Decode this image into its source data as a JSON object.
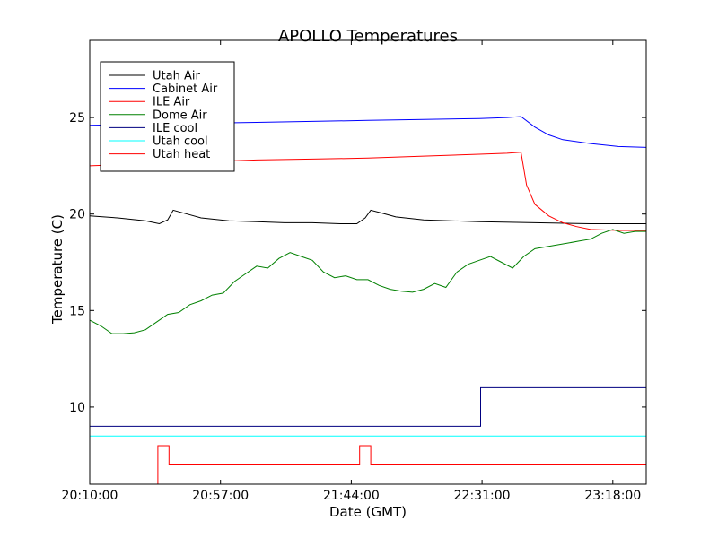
{
  "chart_data": {
    "type": "line",
    "title": "APOLLO Temperatures",
    "xlabel": "Date (GMT)",
    "ylabel": "Temperature (C)",
    "x_unit": "minutes since 20:10:00",
    "xlim": [
      0,
      200
    ],
    "ylim": [
      6,
      29
    ],
    "xticks": [
      {
        "value": 0,
        "label": "20:10:00"
      },
      {
        "value": 47,
        "label": "20:57:00"
      },
      {
        "value": 94,
        "label": "21:44:00"
      },
      {
        "value": 141,
        "label": "22:31:00"
      },
      {
        "value": 188,
        "label": "23:18:00"
      }
    ],
    "yticks": [
      {
        "value": 10,
        "label": "10"
      },
      {
        "value": 15,
        "label": "15"
      },
      {
        "value": 20,
        "label": "20"
      },
      {
        "value": 25,
        "label": "25"
      }
    ],
    "legend_position": "top-left",
    "series": [
      {
        "name": "Utah Air",
        "color": "#000000",
        "x": [
          0,
          10,
          20,
          25,
          28,
          30,
          35,
          40,
          50,
          60,
          70,
          80,
          90,
          96,
          99,
          101,
          105,
          110,
          120,
          140,
          160,
          180,
          200
        ],
        "y": [
          19.9,
          19.8,
          19.65,
          19.5,
          19.7,
          20.2,
          20.0,
          19.8,
          19.65,
          19.6,
          19.55,
          19.55,
          19.5,
          19.5,
          19.8,
          20.2,
          20.05,
          19.85,
          19.7,
          19.6,
          19.55,
          19.5,
          19.5
        ]
      },
      {
        "name": "Cabinet Air",
        "color": "#0000ff",
        "x": [
          0,
          20,
          40,
          60,
          80,
          100,
          120,
          140,
          150,
          155,
          160,
          165,
          170,
          180,
          190,
          200
        ],
        "y": [
          24.6,
          24.65,
          24.7,
          24.75,
          24.8,
          24.85,
          24.9,
          24.95,
          25.0,
          25.05,
          24.5,
          24.1,
          23.85,
          23.65,
          23.5,
          23.45
        ]
      },
      {
        "name": "ILE Air",
        "color": "#ff0000",
        "x": [
          0,
          20,
          40,
          60,
          80,
          100,
          120,
          140,
          150,
          155,
          157,
          160,
          165,
          170,
          175,
          180,
          190,
          200
        ],
        "y": [
          22.5,
          22.6,
          22.7,
          22.8,
          22.85,
          22.9,
          23.0,
          23.1,
          23.15,
          23.2,
          21.5,
          20.5,
          19.9,
          19.55,
          19.35,
          19.2,
          19.15,
          19.15
        ]
      },
      {
        "name": "Dome Air",
        "color": "#008000",
        "x": [
          0,
          4,
          8,
          12,
          16,
          20,
          24,
          28,
          32,
          36,
          40,
          44,
          48,
          52,
          56,
          60,
          64,
          68,
          72,
          76,
          80,
          84,
          88,
          92,
          96,
          100,
          104,
          108,
          112,
          116,
          120,
          124,
          128,
          132,
          136,
          140,
          144,
          148,
          152,
          156,
          160,
          164,
          168,
          172,
          176,
          180,
          184,
          188,
          192,
          196,
          200
        ],
        "y": [
          14.5,
          14.2,
          13.8,
          13.8,
          13.85,
          14.0,
          14.4,
          14.8,
          14.9,
          15.3,
          15.5,
          15.8,
          15.9,
          16.5,
          16.9,
          17.3,
          17.2,
          17.7,
          18.0,
          17.8,
          17.6,
          17.0,
          16.7,
          16.8,
          16.6,
          16.6,
          16.3,
          16.1,
          16.0,
          15.95,
          16.1,
          16.4,
          16.2,
          17.0,
          17.4,
          17.6,
          17.8,
          17.5,
          17.2,
          17.8,
          18.2,
          18.3,
          18.4,
          18.5,
          18.6,
          18.7,
          19.0,
          19.2,
          19.0,
          19.1,
          19.1
        ]
      },
      {
        "name": "ILE cool",
        "color": "#000080",
        "x": [
          0,
          140.5,
          140.5,
          200
        ],
        "y": [
          9.0,
          9.0,
          11.0,
          11.0
        ]
      },
      {
        "name": "Utah cool",
        "color": "#00ffff",
        "x": [
          0,
          0,
          0.3,
          200
        ],
        "y": [
          7.4,
          8.5,
          8.5,
          8.5
        ]
      },
      {
        "name": "Utah heat",
        "color": "#ff0000",
        "x": [
          24.5,
          24.5,
          28.5,
          28.5,
          97.0,
          97.0,
          101.0,
          101.0,
          200
        ],
        "y": [
          6.0,
          8.0,
          8.0,
          7.0,
          7.0,
          8.0,
          8.0,
          7.0,
          7.0
        ]
      }
    ]
  }
}
